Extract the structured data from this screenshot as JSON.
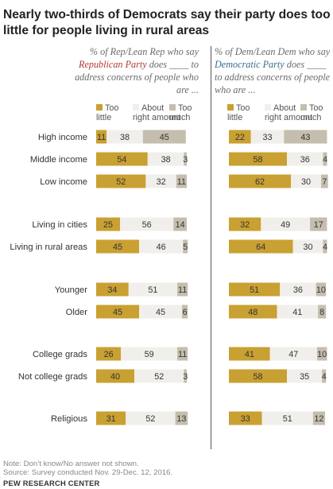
{
  "title": "Nearly two-thirds of Democrats say their party does too little for people living in rural areas",
  "left_panel": {
    "subtitle_before": "% of Rep/Lean Rep who say ",
    "party": "Republican Party",
    "subtitle_after": " does ____ to address concerns of people who are ..."
  },
  "right_panel": {
    "subtitle_before": "% of Dem/Lean Dem who say ",
    "party": "Democratic Party",
    "subtitle_after": " does ____ to address concerns of people who are ..."
  },
  "legend": {
    "too_little": "Too little",
    "about_right": "About right amount",
    "too_much": "Too much"
  },
  "colors": {
    "too_little": "#c9a032",
    "about_right": "#f1efeb",
    "too_much": "#c5beae",
    "republican": "#b23c32",
    "democratic": "#3a6d8c"
  },
  "chart_data": {
    "type": "bar",
    "stacked": true,
    "orientation": "horizontal",
    "categories": [
      "High income",
      "Middle income",
      "Low income",
      "Living in cities",
      "Living in rural areas",
      "Younger",
      "Older",
      "College grads",
      "Not college grads",
      "Religious"
    ],
    "groups": [
      {
        "name": "Rep/Lean Rep",
        "series": [
          {
            "name": "Too little",
            "values": [
              11,
              54,
              52,
              25,
              45,
              34,
              45,
              26,
              40,
              31
            ]
          },
          {
            "name": "About right amount",
            "values": [
              38,
              38,
              32,
              56,
              46,
              51,
              45,
              59,
              52,
              52
            ]
          },
          {
            "name": "Too much",
            "values": [
              45,
              3,
              11,
              14,
              5,
              11,
              6,
              11,
              3,
              13
            ]
          }
        ]
      },
      {
        "name": "Dem/Lean Dem",
        "series": [
          {
            "name": "Too little",
            "values": [
              22,
              58,
              62,
              32,
              64,
              51,
              48,
              41,
              58,
              33
            ]
          },
          {
            "name": "About right amount",
            "values": [
              33,
              36,
              30,
              49,
              30,
              36,
              41,
              47,
              35,
              51
            ]
          },
          {
            "name": "Too much",
            "values": [
              43,
              4,
              7,
              17,
              4,
              10,
              8,
              10,
              4,
              12
            ]
          }
        ]
      }
    ],
    "xlim": [
      0,
      100
    ]
  },
  "note": "Note: Don’t know/No answer not shown.",
  "source": "Source: Survey conducted Nov. 29-Dec. 12, 2016.",
  "credit": "PEW RESEARCH CENTER"
}
